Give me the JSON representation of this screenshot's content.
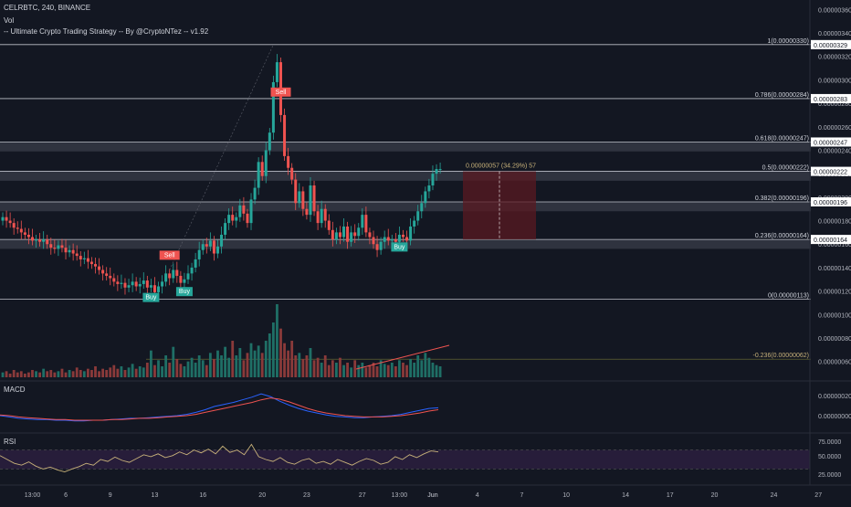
{
  "header": {
    "symbol_line": "CELRBTC, 240, BINANCE",
    "vol_label": "Vol",
    "strategy_line": "-- Ultimate Crypto Trading Strategy -- By @CryptoNTez -- v1.92"
  },
  "panes": {
    "macd_label": "MACD",
    "rsi_label": "RSI"
  },
  "colors": {
    "background": "#131722",
    "up": "#26a69a",
    "down": "#ef5350",
    "fib_line": "#d1d4dc",
    "macd": "#2962ff",
    "signal": "#ef5350",
    "rsi": "#c8b27a",
    "rsi_band": "#2a1e3d",
    "buy": "#26a69a",
    "sell": "#ef5350"
  },
  "chart_data": [
    {
      "type": "candlestick",
      "title": "CELRBTC, 240, BINANCE",
      "price_axis_ticks": [
        "0.00000360",
        "0.00000340",
        "0.00000320",
        "0.00000300",
        "0.00000280",
        "0.00000260",
        "0.00000240",
        "0.00000220",
        "0.00000200",
        "0.00000180",
        "0.00000160",
        "0.00000140",
        "0.00000120",
        "0.00000100",
        "0.00000080",
        "0.00000060"
      ],
      "price_axis_ticks_values": [
        3.6,
        3.4,
        3.2,
        3.0,
        2.8,
        2.6,
        2.4,
        2.2,
        2.0,
        1.8,
        1.6,
        1.4,
        1.2,
        1.0,
        0.8,
        0.6
      ],
      "price_unit_note": "values in 1e-6 BTC",
      "ylim": [
        0.45,
        3.68
      ],
      "x_ticks": [
        "13:00",
        "6",
        "9",
        "13",
        "16",
        "20",
        "23",
        "27",
        "13:00",
        "Jun",
        "4",
        "7",
        "10",
        "14",
        "17",
        "20",
        "24",
        "27"
      ],
      "x_tick_index": [
        8,
        17,
        29,
        41,
        54,
        70,
        82,
        97,
        107,
        116,
        128,
        140,
        152,
        168,
        180,
        192,
        208,
        220
      ],
      "close": [
        1.83,
        1.8,
        1.78,
        1.74,
        1.73,
        1.7,
        1.68,
        1.66,
        1.63,
        1.64,
        1.62,
        1.64,
        1.6,
        1.57,
        1.56,
        1.59,
        1.57,
        1.53,
        1.55,
        1.52,
        1.5,
        1.47,
        1.48,
        1.45,
        1.43,
        1.41,
        1.38,
        1.35,
        1.33,
        1.31,
        1.28,
        1.26,
        1.27,
        1.23,
        1.25,
        1.28,
        1.24,
        1.26,
        1.29,
        1.23,
        1.25,
        1.19,
        1.24,
        1.28,
        1.35,
        1.31,
        1.38,
        1.33,
        1.27,
        1.3,
        1.35,
        1.4,
        1.47,
        1.55,
        1.6,
        1.58,
        1.63,
        1.52,
        1.58,
        1.68,
        1.78,
        1.85,
        1.8,
        1.83,
        1.93,
        1.86,
        1.78,
        1.98,
        2.08,
        2.3,
        2.18,
        2.4,
        2.55,
        2.98,
        3.15,
        2.7,
        2.35,
        2.25,
        2.15,
        1.95,
        2.05,
        1.9,
        1.85,
        2.1,
        1.88,
        1.78,
        1.9,
        1.8,
        1.72,
        1.64,
        1.7,
        1.66,
        1.75,
        1.62,
        1.7,
        1.67,
        1.74,
        1.85,
        1.7,
        1.66,
        1.6,
        1.55,
        1.62,
        1.66,
        1.63,
        1.64,
        1.62,
        1.68,
        1.66,
        1.63,
        1.75,
        1.8,
        1.88,
        1.95,
        2.05,
        2.1,
        2.2,
        2.24,
        2.24
      ],
      "fib_levels": [
        {
          "ratio": "1",
          "price": "0.00000330",
          "label": "1(0.00000330)",
          "axis_label": "0.00000329"
        },
        {
          "ratio": "0.786",
          "price": "0.00000284",
          "label": "0.786(0.00000284)",
          "axis_label": "0.00000283"
        },
        {
          "ratio": "0.618",
          "price": "0.00000247",
          "label": "0.618(0.00000247)",
          "axis_label": "0.00000247"
        },
        {
          "ratio": "0.5",
          "price": "0.00000222",
          "label": "0.5(0.00000222)",
          "axis_label": "0.00000222"
        },
        {
          "ratio": "0.382",
          "price": "0.00000196",
          "label": "0.382(0.00000196)",
          "axis_label": "0.00000196"
        },
        {
          "ratio": "0.236",
          "price": "0.00000164",
          "label": "0.236(0.00000164)",
          "axis_label": "0.00000164"
        },
        {
          "ratio": "0",
          "price": "0.00000113",
          "label": "0(0.00000113)",
          "axis_label": ""
        },
        {
          "ratio": "-0.236",
          "price": "0.00000062",
          "label": "-0.236(0.00000062)",
          "axis_label": ""
        }
      ],
      "signals": [
        {
          "text": "Buy",
          "index": 40,
          "type": "buy"
        },
        {
          "text": "Sell",
          "index": 45,
          "type": "sell"
        },
        {
          "text": "Buy",
          "index": 49,
          "type": "buy"
        },
        {
          "text": "Sell",
          "index": 75,
          "type": "sell"
        },
        {
          "text": "Buy",
          "index": 107,
          "type": "buy"
        }
      ],
      "measure_label": "0.00000057 (34.29%) 57"
    },
    {
      "type": "bar",
      "title": "Vol",
      "volume": [
        4,
        5,
        3,
        6,
        4,
        5,
        3,
        4,
        6,
        5,
        4,
        7,
        5,
        6,
        4,
        5,
        7,
        4,
        6,
        5,
        8,
        6,
        5,
        7,
        6,
        9,
        5,
        7,
        6,
        8,
        10,
        7,
        9,
        6,
        8,
        11,
        7,
        9,
        8,
        12,
        22,
        10,
        14,
        9,
        18,
        12,
        25,
        15,
        11,
        9,
        13,
        16,
        12,
        18,
        14,
        10,
        20,
        15,
        22,
        18,
        25,
        16,
        30,
        18,
        24,
        14,
        20,
        28,
        22,
        26,
        20,
        30,
        36,
        45,
        60,
        40,
        28,
        22,
        30,
        18,
        20,
        15,
        18,
        24,
        14,
        16,
        12,
        18,
        10,
        14,
        12,
        16,
        10,
        12,
        8,
        14,
        10,
        12,
        8,
        10,
        12,
        9,
        14,
        11,
        10,
        12,
        9,
        14,
        12,
        10,
        15,
        12,
        18,
        14,
        20,
        16,
        12,
        10,
        9
      ]
    },
    {
      "type": "line",
      "title": "MACD",
      "macd_ticks": [
        "0.00000020",
        "0.00000000"
      ],
      "series": [
        {
          "name": "MACD",
          "values": [
            0.0,
            -0.02,
            -0.04,
            -0.05,
            -0.06,
            -0.06,
            -0.07,
            -0.07,
            -0.08,
            -0.08,
            -0.07,
            -0.07,
            -0.06,
            -0.05,
            -0.04,
            -0.04,
            -0.03,
            -0.02,
            -0.01,
            0.0,
            0.02,
            0.05,
            0.09,
            0.14,
            0.17,
            0.2,
            0.24,
            0.28,
            0.33,
            0.29,
            0.22,
            0.16,
            0.11,
            0.07,
            0.04,
            0.01,
            -0.01,
            -0.02,
            -0.03,
            -0.03,
            -0.02,
            -0.01,
            0.0,
            0.02,
            0.05,
            0.08,
            0.11,
            0.12
          ]
        },
        {
          "name": "Signal",
          "values": [
            0.01,
            0.0,
            -0.02,
            -0.03,
            -0.04,
            -0.05,
            -0.06,
            -0.06,
            -0.07,
            -0.07,
            -0.07,
            -0.07,
            -0.06,
            -0.06,
            -0.05,
            -0.04,
            -0.04,
            -0.03,
            -0.02,
            -0.01,
            0.0,
            0.02,
            0.05,
            0.08,
            0.11,
            0.14,
            0.17,
            0.2,
            0.24,
            0.27,
            0.25,
            0.21,
            0.16,
            0.11,
            0.07,
            0.04,
            0.02,
            0.0,
            -0.01,
            -0.02,
            -0.02,
            -0.02,
            -0.01,
            0.0,
            0.02,
            0.04,
            0.07,
            0.09
          ]
        }
      ]
    },
    {
      "type": "line",
      "title": "RSI",
      "rsi_ticks": [
        "75.0000",
        "50.0000",
        "25.0000"
      ],
      "rsi_bands": [
        70,
        30
      ],
      "series": [
        {
          "name": "RSI",
          "values": [
            58,
            50,
            42,
            38,
            45,
            36,
            30,
            34,
            28,
            24,
            30,
            35,
            42,
            38,
            50,
            46,
            55,
            48,
            44,
            52,
            60,
            56,
            62,
            54,
            58,
            66,
            60,
            70,
            64,
            72,
            62,
            78,
            65,
            70,
            60,
            82,
            56,
            50,
            46,
            54,
            44,
            40,
            48,
            52,
            42,
            46,
            40,
            50,
            44,
            38,
            46,
            52,
            48,
            40,
            44,
            56,
            50,
            60,
            54,
            62,
            68,
            66
          ]
        }
      ]
    }
  ]
}
